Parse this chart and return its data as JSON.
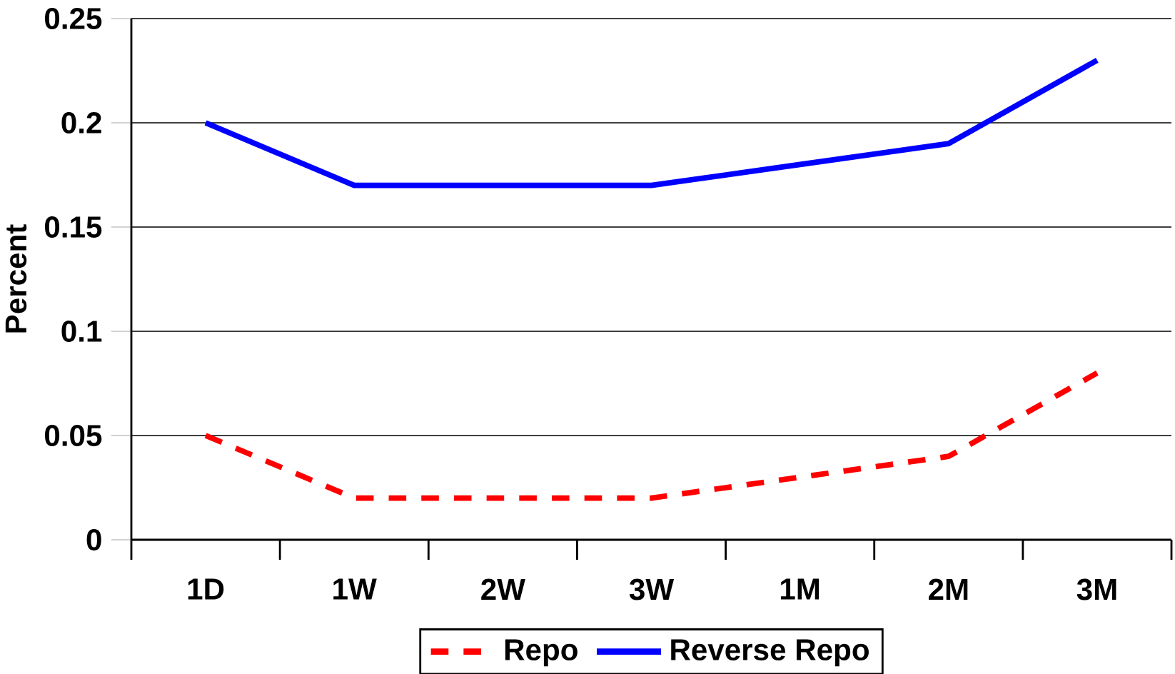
{
  "chart_data": {
    "type": "line",
    "ylabel": "Percent",
    "categories": [
      "1D",
      "1W",
      "2W",
      "3W",
      "1M",
      "2M",
      "3M"
    ],
    "series": [
      {
        "name": "Repo",
        "color": "#ff0000",
        "line_style": "dashed",
        "values": [
          0.05,
          0.02,
          0.02,
          0.02,
          0.03,
          0.04,
          0.08
        ]
      },
      {
        "name": "Reverse Repo",
        "color": "#0000ff",
        "line_style": "solid",
        "values": [
          0.2,
          0.17,
          0.17,
          0.17,
          0.18,
          0.19,
          0.23
        ]
      }
    ],
    "ylim": [
      0,
      0.25
    ],
    "yticks": [
      0,
      0.05,
      0.1,
      0.15,
      0.2,
      0.25
    ],
    "grid": "y",
    "legend": "bottom",
    "marker": "none"
  }
}
